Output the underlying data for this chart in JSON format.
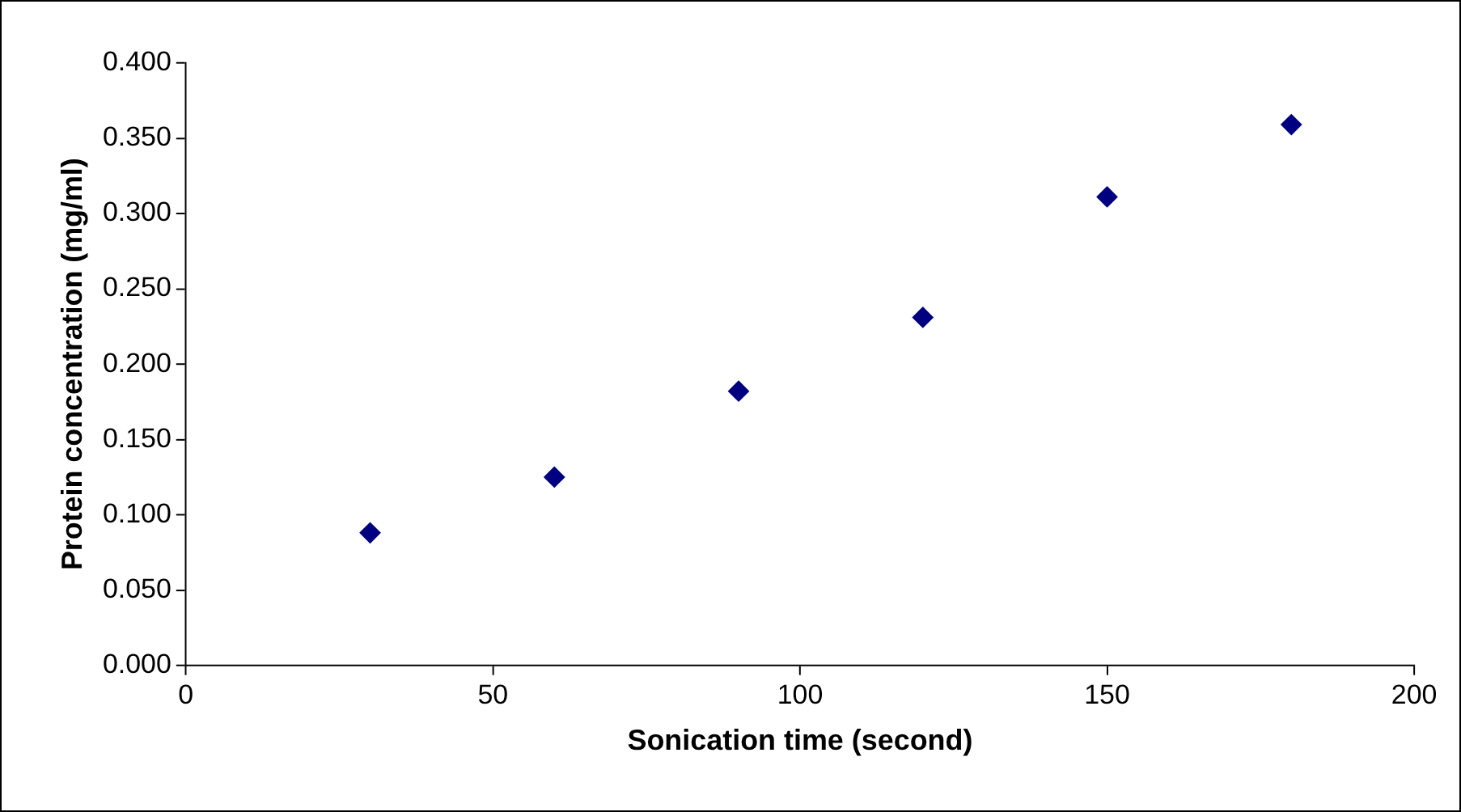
{
  "chart_data": {
    "type": "scatter",
    "xlabel": "Sonication time (second)",
    "ylabel": "Protein concentration (mg/ml)",
    "x": [
      30,
      60,
      90,
      120,
      150,
      180
    ],
    "series": [
      {
        "color": "#000080",
        "values": [
          0.088,
          0.125,
          0.182,
          0.231,
          0.311,
          0.359
        ]
      }
    ],
    "xlim": [
      0,
      200
    ],
    "xticks": [
      0,
      50,
      100,
      150,
      200
    ],
    "ylim": [
      0,
      0.4
    ],
    "yticks": [
      {
        "value": 0,
        "label": "0.000"
      },
      {
        "value": 0.05,
        "label": "0.050"
      },
      {
        "value": 0.1,
        "label": "0.100"
      },
      {
        "value": 0.15,
        "label": "0.150"
      },
      {
        "value": 0.2,
        "label": "0.200"
      },
      {
        "value": 0.25,
        "label": "0.250"
      },
      {
        "value": 0.3,
        "label": "0.300"
      },
      {
        "value": 0.35,
        "label": "0.350"
      },
      {
        "value": 0.4,
        "label": "0.400"
      }
    ],
    "grid": false,
    "legend": false,
    "marker": "diamond"
  }
}
